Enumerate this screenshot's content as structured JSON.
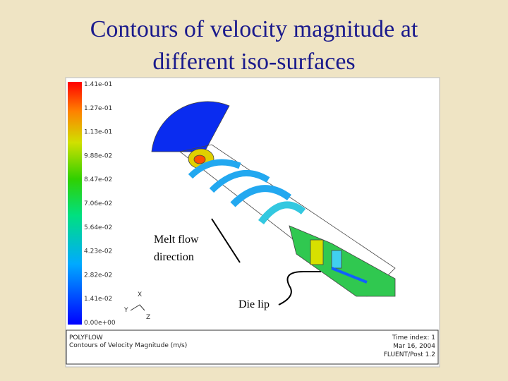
{
  "title": [
    "Contours of velocity magnitude at",
    "different iso-surfaces"
  ],
  "colorbar": [
    "1.41e-01",
    "1.27e-01",
    "1.13e-01",
    "9.88e-02",
    "8.47e-02",
    "7.06e-02",
    "5.64e-02",
    "4.23e-02",
    "2.82e-02",
    "1.41e-02",
    "0.00e+00"
  ],
  "annotations": {
    "flow": [
      "Melt flow",
      "direction"
    ],
    "lip": "Die lip"
  },
  "axes": [
    "X",
    "Y",
    "Z"
  ],
  "footer": {
    "left": [
      "POLYFLOW",
      "Contours of Velocity Magnitude (m/s)"
    ],
    "right": [
      "Time index: 1",
      "Mar 16, 2004",
      "FLUENT/Post 1.2"
    ]
  }
}
